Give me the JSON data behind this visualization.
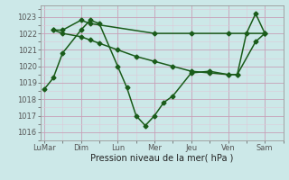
{
  "xlabel": "Pression niveau de la mer( hPa )",
  "bg_color": "#cce8e8",
  "line_color": "#1a5c1a",
  "grid_major_color": "#c8a0b8",
  "grid_minor_color": "#ddc8d8",
  "ylim": [
    1015.5,
    1023.7
  ],
  "yticks": [
    1016,
    1017,
    1018,
    1019,
    1020,
    1021,
    1022,
    1023
  ],
  "tick_positions": [
    0,
    2,
    4,
    6,
    8,
    10,
    12
  ],
  "tick_labels": [
    "LuMar",
    "Dim",
    "Lun",
    "Mer",
    "Jeu",
    "Ven",
    "Sam"
  ],
  "xlim": [
    -0.2,
    13.0
  ],
  "line1_zigzag": {
    "x": [
      0,
      0.5,
      1.0,
      2.0,
      2.5,
      3.0,
      4.0,
      4.5,
      5.0,
      5.5,
      6.0,
      6.5,
      7.0,
      8.0,
      9.0,
      10.0,
      10.5,
      11.0,
      11.5,
      12.0
    ],
    "y": [
      1018.6,
      1019.3,
      1020.8,
      1022.2,
      1022.8,
      1022.6,
      1020.0,
      1018.7,
      1017.0,
      1016.4,
      1017.0,
      1017.8,
      1018.2,
      1019.6,
      1019.7,
      1019.5,
      1019.5,
      1022.0,
      1023.2,
      1022.0
    ]
  },
  "line2_flat": {
    "x": [
      0.5,
      1.0,
      2.0,
      2.5,
      6.0,
      8.0,
      10.0,
      12.0
    ],
    "y": [
      1022.2,
      1022.2,
      1022.8,
      1022.6,
      1022.0,
      1022.0,
      1022.0,
      1022.0
    ]
  },
  "line3_diag": {
    "x": [
      0.5,
      1.0,
      2.0,
      2.5,
      3.0,
      4.0,
      5.0,
      6.0,
      7.0,
      8.0,
      9.0,
      10.0,
      10.5,
      11.5,
      12.0
    ],
    "y": [
      1022.2,
      1022.0,
      1021.8,
      1021.6,
      1021.4,
      1021.0,
      1020.6,
      1020.3,
      1020.0,
      1019.7,
      1019.6,
      1019.5,
      1019.5,
      1021.5,
      1022.0
    ]
  }
}
